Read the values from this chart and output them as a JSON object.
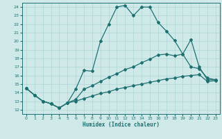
{
  "xlabel": "Humidex (Indice chaleur)",
  "bg_color": "#cfe9e9",
  "grid_color": "#add5d5",
  "line_color": "#1e7070",
  "xlim": [
    -0.5,
    23.5
  ],
  "ylim": [
    11.5,
    24.5
  ],
  "xticks": [
    0,
    1,
    2,
    3,
    4,
    5,
    6,
    7,
    8,
    9,
    10,
    11,
    12,
    13,
    14,
    15,
    16,
    17,
    18,
    19,
    20,
    21,
    22,
    23
  ],
  "yticks": [
    12,
    13,
    14,
    15,
    16,
    17,
    18,
    19,
    20,
    21,
    22,
    23,
    24
  ],
  "line1_x": [
    0,
    1,
    2,
    3,
    4,
    5,
    6,
    7,
    8,
    9,
    10,
    11,
    12,
    13,
    14,
    15,
    16,
    17,
    18,
    19,
    20,
    21,
    22,
    23
  ],
  "line1_y": [
    14.5,
    13.7,
    13.0,
    12.7,
    12.2,
    12.8,
    14.4,
    16.6,
    16.5,
    20.0,
    22.0,
    24.0,
    24.2,
    23.0,
    24.0,
    24.0,
    22.2,
    21.2,
    20.1,
    18.5,
    20.2,
    17.0,
    15.5,
    15.5
  ],
  "line2_x": [
    0,
    1,
    2,
    3,
    4,
    5,
    6,
    7,
    8,
    9,
    10,
    11,
    12,
    13,
    14,
    15,
    16,
    17,
    18,
    19,
    20,
    21,
    22,
    23
  ],
  "line2_y": [
    14.5,
    13.7,
    13.0,
    12.7,
    12.2,
    12.8,
    13.2,
    14.4,
    14.8,
    15.3,
    15.8,
    16.2,
    16.7,
    17.0,
    17.5,
    17.9,
    18.4,
    18.5,
    18.3,
    18.5,
    17.0,
    16.8,
    15.7,
    15.5
  ],
  "line3_x": [
    0,
    1,
    2,
    3,
    4,
    5,
    6,
    7,
    8,
    9,
    10,
    11,
    12,
    13,
    14,
    15,
    16,
    17,
    18,
    19,
    20,
    21,
    22,
    23
  ],
  "line3_y": [
    14.5,
    13.7,
    13.0,
    12.7,
    12.2,
    12.8,
    13.0,
    13.3,
    13.6,
    13.9,
    14.1,
    14.4,
    14.6,
    14.8,
    15.0,
    15.2,
    15.4,
    15.6,
    15.7,
    15.9,
    16.0,
    16.1,
    15.3,
    15.4
  ]
}
